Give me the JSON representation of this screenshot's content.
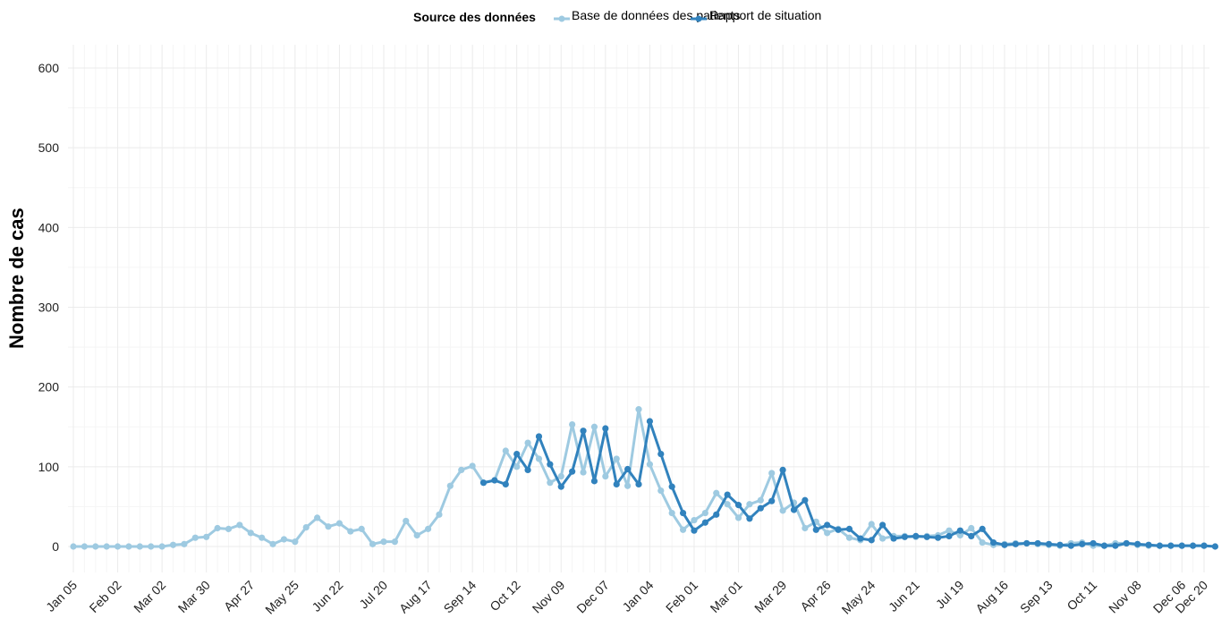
{
  "chart_data": {
    "type": "line",
    "title": "",
    "xlabel": "",
    "ylabel": "Nombre de cas",
    "ylim": [
      0,
      620
    ],
    "yticks": [
      0,
      100,
      200,
      300,
      400,
      500,
      600
    ],
    "grid": true,
    "legend": {
      "title": "Source des données",
      "placement": "top",
      "entries": [
        "Base de données des patients",
        "Rapport de situation"
      ]
    },
    "x_tick_labels": [
      "Jan 05",
      "Feb 02",
      "Mar 02",
      "Mar 30",
      "Apr 27",
      "May 25",
      "Jun 22",
      "Jul 20",
      "Aug 17",
      "Sep 14",
      "Oct 12",
      "Nov 09",
      "Dec 07",
      "Jan 04",
      "Feb 01",
      "Mar 01",
      "Mar 29",
      "Apr 26",
      "May 24",
      "Jun 21",
      "Jul 19",
      "Aug 16",
      "Sep 13",
      "Oct 11",
      "Nov 08",
      "Dec 06",
      "Dec 20"
    ],
    "x_tick_positions": [
      0,
      4,
      8,
      12,
      16,
      20,
      24,
      28,
      32,
      36,
      40,
      44,
      48,
      52,
      56,
      60,
      64,
      68,
      72,
      76,
      80,
      84,
      88,
      92,
      96,
      100,
      102
    ],
    "x_count": 103,
    "series": [
      {
        "name": "Base de données des patients",
        "color": "#9ecae1",
        "x_start": 0,
        "values": [
          0,
          0,
          0,
          0,
          0,
          0,
          0,
          0,
          0,
          2,
          3,
          11,
          12,
          23,
          22,
          27,
          17,
          11,
          3,
          9,
          6,
          24,
          36,
          25,
          29,
          19,
          22,
          3,
          6,
          6,
          32,
          14,
          22,
          40,
          76,
          96,
          101,
          80,
          83,
          120,
          100,
          130,
          110,
          80,
          88,
          153,
          93,
          150,
          88,
          110,
          76,
          172,
          103,
          70,
          42,
          21,
          33,
          42,
          67,
          53,
          36,
          53,
          58,
          92,
          45,
          55,
          23,
          31,
          17,
          22,
          11,
          8,
          28,
          10,
          13,
          13,
          12,
          13,
          14,
          20,
          14,
          23,
          5,
          2,
          3,
          4,
          4,
          3,
          2,
          1,
          4,
          5,
          1,
          1,
          4,
          4,
          2,
          1,
          1,
          1,
          1,
          1,
          1
        ]
      },
      {
        "name": "Rapport de situation",
        "color": "#3182bd",
        "x_start": 37,
        "values": [
          80,
          83,
          78,
          116,
          96,
          138,
          103,
          75,
          94,
          145,
          82,
          148,
          78,
          97,
          78,
          157,
          116,
          75,
          42,
          20,
          30,
          40,
          65,
          52,
          35,
          48,
          57,
          96,
          46,
          58,
          21,
          27,
          21,
          22,
          10,
          8,
          27,
          10,
          12,
          13,
          12,
          11,
          13,
          20,
          13,
          22,
          5,
          2,
          3,
          4,
          4,
          3,
          2,
          1,
          3,
          4,
          1,
          1,
          4,
          3,
          2,
          1,
          1,
          1,
          1,
          1,
          0
        ]
      }
    ]
  }
}
